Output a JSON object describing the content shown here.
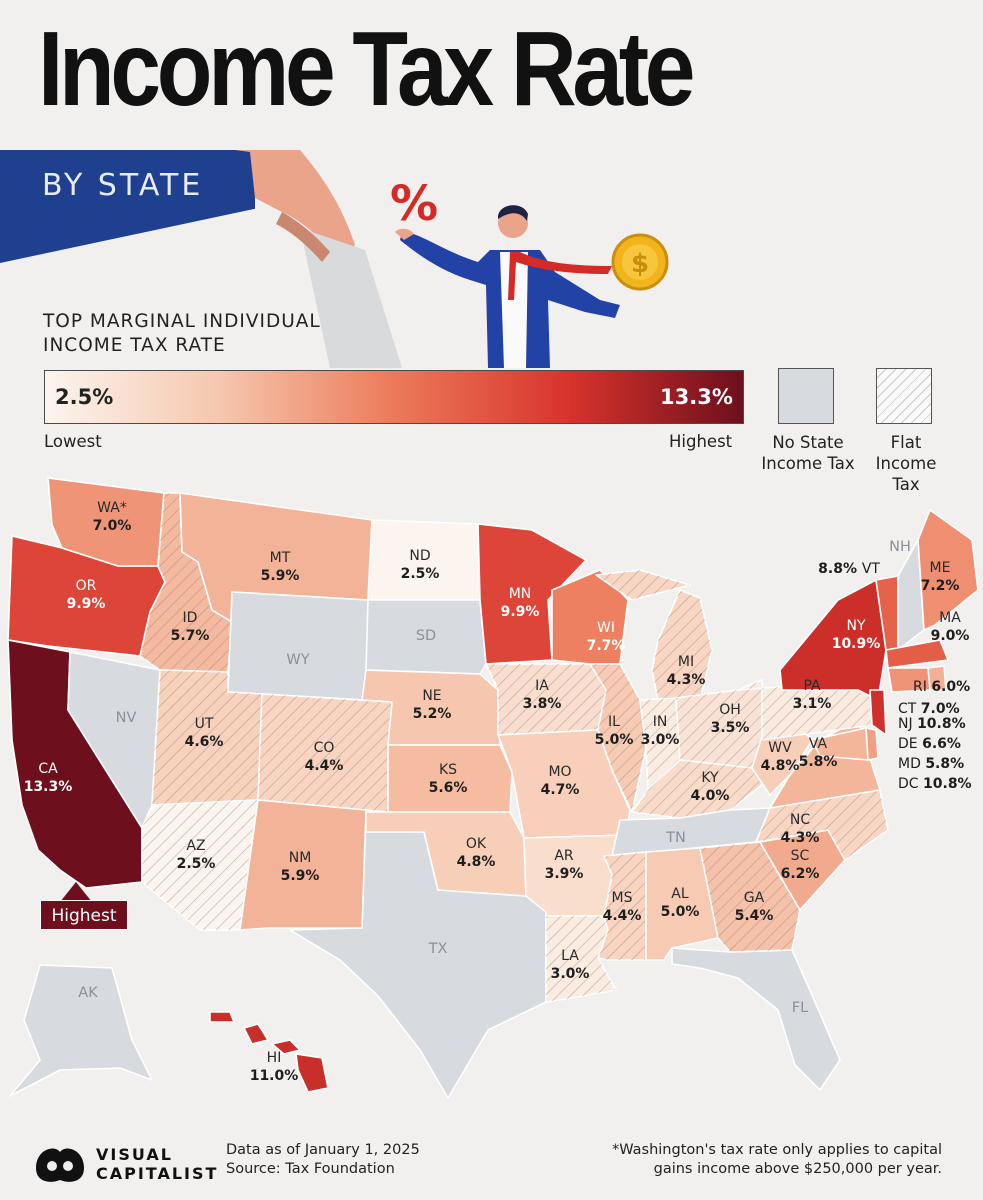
{
  "title": "Income Tax Rate",
  "subtitle": "BY STATE",
  "scale": {
    "title_line1": "TOP MARGINAL INDIVIDUAL",
    "title_line2": "INCOME TAX RATE",
    "min": "2.5%",
    "max": "13.3%",
    "min_label": "Lowest",
    "max_label": "Highest",
    "no_tax_line1": "No State",
    "no_tax_line2": "Income Tax",
    "flat_line1": "Flat",
    "flat_line2": "Income",
    "flat_line3": "Tax",
    "colors": [
      "#fcf4ee",
      "#f6c7ae",
      "#ec7a5a",
      "#d8332c",
      "#6d0f1d"
    ],
    "no_tax_color": "#d7dadf"
  },
  "illustration": {
    "percent_sign": "%",
    "coin_symbol": "$",
    "icons": [
      "hand-icon",
      "businessman-icon",
      "coin-icon"
    ]
  },
  "states": {
    "WA": {
      "abbr": "WA*",
      "rate": "7.0%"
    },
    "OR": {
      "abbr": "OR",
      "rate": "9.9%"
    },
    "CA": {
      "abbr": "CA",
      "rate": "13.3%"
    },
    "NV": {
      "abbr": "NV"
    },
    "ID": {
      "abbr": "ID",
      "rate": "5.7%"
    },
    "MT": {
      "abbr": "MT",
      "rate": "5.9%"
    },
    "WY": {
      "abbr": "WY"
    },
    "UT": {
      "abbr": "UT",
      "rate": "4.6%"
    },
    "AZ": {
      "abbr": "AZ",
      "rate": "2.5%"
    },
    "CO": {
      "abbr": "CO",
      "rate": "4.4%"
    },
    "NM": {
      "abbr": "NM",
      "rate": "5.9%"
    },
    "ND": {
      "abbr": "ND",
      "rate": "2.5%"
    },
    "SD": {
      "abbr": "SD"
    },
    "NE": {
      "abbr": "NE",
      "rate": "5.2%"
    },
    "KS": {
      "abbr": "KS",
      "rate": "5.6%"
    },
    "OK": {
      "abbr": "OK",
      "rate": "4.8%"
    },
    "TX": {
      "abbr": "TX"
    },
    "MN": {
      "abbr": "MN",
      "rate": "9.9%"
    },
    "IA": {
      "abbr": "IA",
      "rate": "3.8%"
    },
    "MO": {
      "abbr": "MO",
      "rate": "4.7%"
    },
    "AR": {
      "abbr": "AR",
      "rate": "3.9%"
    },
    "LA": {
      "abbr": "LA",
      "rate": "3.0%"
    },
    "WI": {
      "abbr": "WI",
      "rate": "7.7%"
    },
    "IL": {
      "abbr": "IL",
      "rate": "5.0%"
    },
    "MI": {
      "abbr": "MI",
      "rate": "4.3%"
    },
    "IN": {
      "abbr": "IN",
      "rate": "3.0%"
    },
    "OH": {
      "abbr": "OH",
      "rate": "3.5%"
    },
    "KY": {
      "abbr": "KY",
      "rate": "4.0%"
    },
    "TN": {
      "abbr": "TN"
    },
    "MS": {
      "abbr": "MS",
      "rate": "4.4%"
    },
    "AL": {
      "abbr": "AL",
      "rate": "5.0%"
    },
    "GA": {
      "abbr": "GA",
      "rate": "5.4%"
    },
    "FL": {
      "abbr": "FL"
    },
    "SC": {
      "abbr": "SC",
      "rate": "6.2%"
    },
    "NC": {
      "abbr": "NC",
      "rate": "4.3%"
    },
    "VA": {
      "abbr": "VA",
      "rate": "5.8%"
    },
    "WV": {
      "abbr": "WV",
      "rate": "4.8%"
    },
    "PA": {
      "abbr": "PA",
      "rate": "3.1%"
    },
    "NY": {
      "abbr": "NY",
      "rate": "10.9%"
    },
    "VT": {
      "abbr": "VT",
      "rate": "8.8%"
    },
    "NH": {
      "abbr": "NH"
    },
    "ME": {
      "abbr": "ME",
      "rate": "7.2%"
    },
    "MA": {
      "abbr": "MA",
      "rate": "9.0%"
    },
    "RI": {
      "abbr": "RI",
      "rate": "6.0%"
    },
    "CT": {
      "abbr": "CT",
      "rate": "7.0%"
    },
    "NJ": {
      "abbr": "NJ",
      "rate": "10.8%"
    },
    "DE": {
      "abbr": "DE",
      "rate": "6.6%"
    },
    "MD": {
      "abbr": "MD",
      "rate": "5.8%"
    },
    "DC": {
      "abbr": "DC",
      "rate": "10.8%"
    },
    "AK": {
      "abbr": "AK"
    },
    "HI": {
      "abbr": "HI",
      "rate": "11.0%"
    }
  },
  "highest_tag": "Highest",
  "footer": {
    "brand_line1": "VISUAL",
    "brand_line2": "CAPITALIST",
    "date": "Data as of January 1, 2025",
    "source": "Source: Tax Foundation",
    "note_line1": "*Washington's tax rate only applies to capital",
    "note_line2": "gains income above $250,000 per year."
  }
}
